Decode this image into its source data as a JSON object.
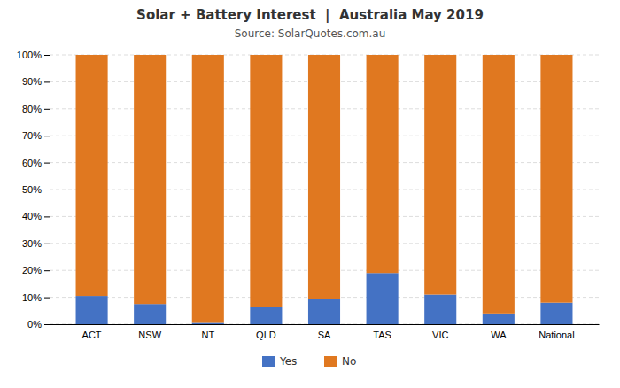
{
  "chart_data": {
    "type": "bar",
    "title": "Solar + Battery Interest  |  Australia May 2019",
    "subtitle": "Source: SolarQuotes.com.au",
    "categories": [
      "ACT",
      "NSW",
      "NT",
      "QLD",
      "SA",
      "TAS",
      "VIC",
      "WA",
      "National"
    ],
    "series": [
      {
        "name": "Yes",
        "color": "#4472c4",
        "values": [
          10.5,
          7.5,
          0.5,
          6.5,
          9.5,
          19.0,
          11.0,
          4.0,
          8.0
        ]
      },
      {
        "name": "No",
        "color": "#e07820",
        "values": [
          89.5,
          92.5,
          99.5,
          93.5,
          90.5,
          81.0,
          89.0,
          96.0,
          92.0
        ]
      }
    ],
    "stacked": true,
    "ylim": [
      0,
      100
    ],
    "yticks": [
      {
        "value": 0,
        "label": "0%"
      },
      {
        "value": 10,
        "label": "10%"
      },
      {
        "value": 20,
        "label": "20%"
      },
      {
        "value": 30,
        "label": "30%"
      },
      {
        "value": 40,
        "label": "40%"
      },
      {
        "value": 50,
        "label": "50%"
      },
      {
        "value": 60,
        "label": "60%"
      },
      {
        "value": 70,
        "label": "70%"
      },
      {
        "value": 80,
        "label": "80%"
      },
      {
        "value": 90,
        "label": "90%"
      },
      {
        "value": 100,
        "label": "100%"
      }
    ],
    "grid": true,
    "legend": "bottom"
  }
}
